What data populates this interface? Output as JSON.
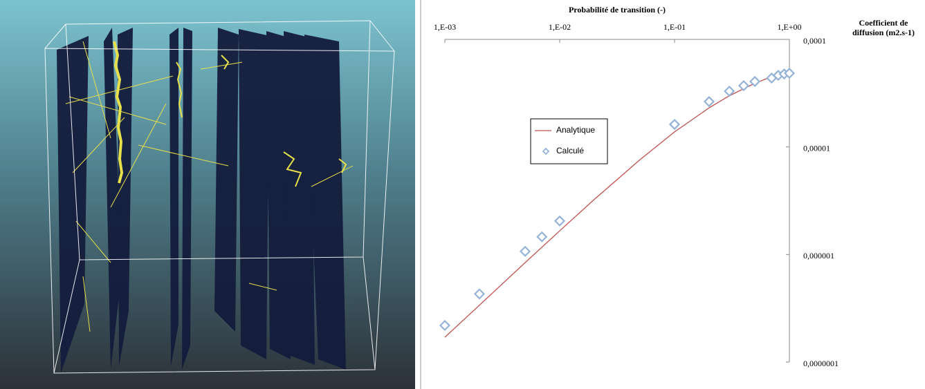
{
  "chart_data": {
    "type": "scatter-line",
    "x_label": "Probabilité de transition (-)",
    "y_label": "Coefficient de diffusion (m2.s-1)",
    "xscale": "log",
    "yscale": "log",
    "xlim": [
      0.001,
      1
    ],
    "ylim": [
      1e-07,
      0.0001
    ],
    "xticks": [
      {
        "value": 0.001,
        "label": "1,E-03"
      },
      {
        "value": 0.01,
        "label": "1,E-02"
      },
      {
        "value": 0.1,
        "label": "1,E-01"
      },
      {
        "value": 1,
        "label": "1,E+00"
      }
    ],
    "yticks": [
      {
        "value": 0.0001,
        "label": "0,0001"
      },
      {
        "value": 1e-05,
        "label": "0,00001"
      },
      {
        "value": 1e-06,
        "label": "0,000001"
      },
      {
        "value": 1e-07,
        "label": "0,0000001"
      }
    ],
    "series": [
      {
        "name": "Analytique",
        "mark": "line",
        "color": "#c0504d",
        "x": [
          0.001,
          0.002,
          0.005,
          0.01,
          0.02,
          0.05,
          0.1,
          0.2,
          0.3,
          0.5,
          0.7,
          1
        ],
        "values": [
          1.7e-07,
          3.38e-07,
          8.4e-07,
          1.66e-06,
          3.25e-06,
          7.61e-06,
          1.38e-05,
          2.31e-05,
          2.99e-05,
          3.91e-05,
          4.5e-05,
          5.07e-05
        ]
      },
      {
        "name": "Calculé",
        "mark": "diamond",
        "color": "#95b3d7",
        "x": [
          0.001,
          0.002,
          0.005,
          0.007,
          0.01,
          0.1,
          0.2,
          0.3,
          0.4,
          0.5,
          0.7,
          0.8,
          0.9,
          1
        ],
        "values": [
          2.19e-07,
          4.3e-07,
          1.07e-06,
          1.46e-06,
          2.05e-06,
          1.62e-05,
          2.64e-05,
          3.3e-05,
          3.71e-05,
          4.06e-05,
          4.37e-05,
          4.63e-05,
          4.77e-05,
          4.84e-05
        ]
      }
    ]
  }
}
